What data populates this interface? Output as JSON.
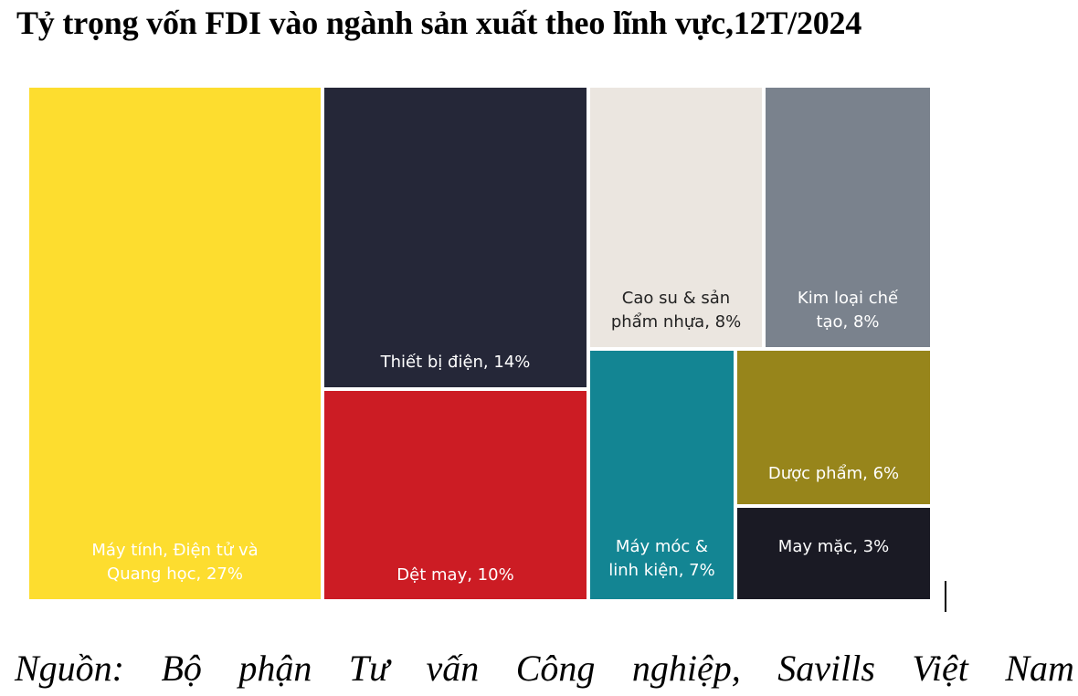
{
  "chart_data": {
    "type": "treemap",
    "title": "Tỷ trọng vốn FDI vào ngành sản xuất theo lĩnh vực,12T/2024",
    "unit": "%",
    "items": [
      {
        "label_lines": [
          "Máy tính, Điện tử và",
          "Quang học, 27%"
        ],
        "value": 27,
        "color": "#FDDD2F",
        "text_color": "#FFFFFF"
      },
      {
        "label_lines": [
          "Thiết bị điện, 14%"
        ],
        "value": 14,
        "color": "#252738",
        "text_color": "#FFFFFF"
      },
      {
        "label_lines": [
          "Dệt may, 10%"
        ],
        "value": 10,
        "color": "#CC1C24",
        "text_color": "#FFFFFF"
      },
      {
        "label_lines": [
          "Cao su & sản",
          "phẩm nhựa, 8%"
        ],
        "value": 8,
        "color": "#EBE6E0",
        "text_color": "#222222"
      },
      {
        "label_lines": [
          "Kim loại chế",
          "tạo, 8%"
        ],
        "value": 8,
        "color": "#7A828D",
        "text_color": "#FFFFFF"
      },
      {
        "label_lines": [
          "Máy móc &",
          "linh kiện, 7%"
        ],
        "value": 7,
        "color": "#138593",
        "text_color": "#FFFFFF"
      },
      {
        "label_lines": [
          "Dược phẩm, 6%"
        ],
        "value": 6,
        "color": "#97851B",
        "text_color": "#FFFFFF"
      },
      {
        "label_lines": [
          "May mặc, 3%"
        ],
        "value": 3,
        "color": "#1A1A24",
        "text_color": "#FFFFFF"
      }
    ]
  },
  "source": {
    "words": [
      "Nguồn:",
      "Bộ",
      "phận",
      "Tư",
      "vấn",
      "Công",
      "nghiệp,",
      "Savills",
      "Việt",
      "Nam"
    ]
  }
}
